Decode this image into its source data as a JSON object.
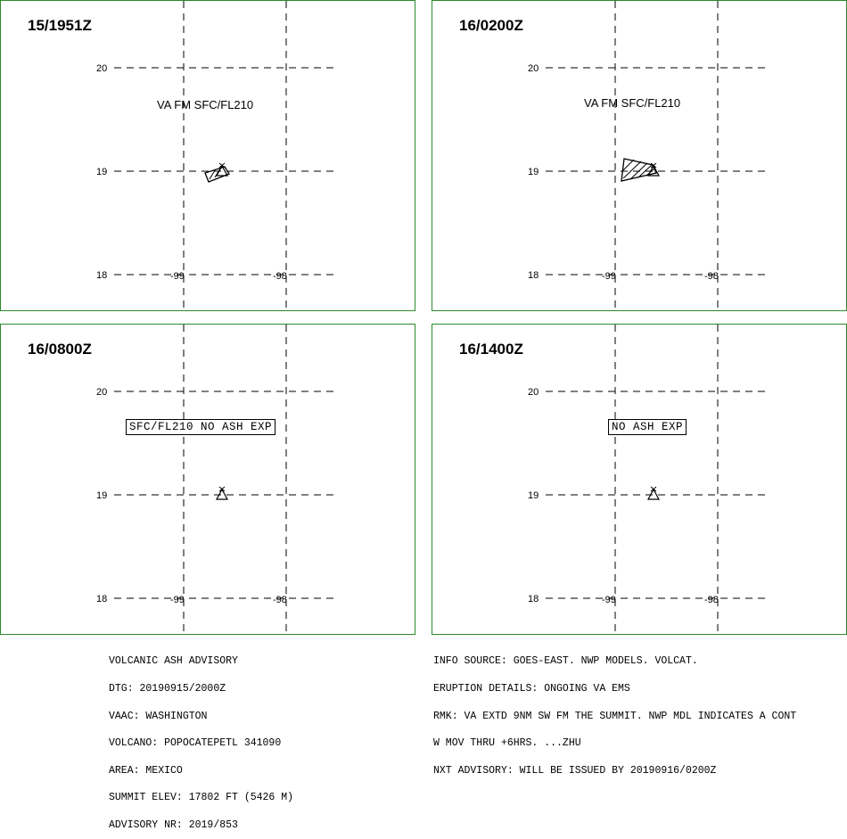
{
  "panels": [
    {
      "time": "15/1951Z",
      "label": "VA FM SFC/FL210",
      "label_style": "plain",
      "ash_polygon": "small"
    },
    {
      "time": "16/0200Z",
      "label": "VA FM SFC/FL210",
      "label_style": "plain",
      "ash_polygon": "large"
    },
    {
      "time": "16/0800Z",
      "label": "SFC/FL210 NO ASH EXP",
      "label_style": "boxed",
      "ash_polygon": "none"
    },
    {
      "time": "16/1400Z",
      "label": "NO ASH EXP",
      "label_style": "boxed",
      "ash_polygon": "none"
    }
  ],
  "grid": {
    "lat_labels": [
      "20",
      "19",
      "18"
    ],
    "lon_labels": [
      "-99",
      "-98"
    ]
  },
  "volcano_marker": "volcano-icon",
  "colors": {
    "panel_border": "#2a8a2a",
    "lines": "#000000"
  },
  "advisory_left": [
    "VOLCANIC ASH ADVISORY",
    "DTG: 20190915/2000Z",
    "VAAC: WASHINGTON",
    "VOLCANO: POPOCATEPETL 341090",
    "AREA: MEXICO",
    "SUMMIT ELEV: 17802 FT (5426 M)",
    "ADVISORY NR: 2019/853"
  ],
  "advisory_right": [
    "INFO SOURCE: GOES-EAST. NWP MODELS. VOLCAT.",
    "ERUPTION DETAILS: ONGOING VA EMS",
    "RMK: VA EXTD 9NM SW FM THE SUMMIT. NWP MDL INDICATES A CONT",
    "W MOV THRU +6HRS. ...ZHU",
    "NXT ADVISORY: WILL BE ISSUED BY 20190916/0200Z"
  ]
}
